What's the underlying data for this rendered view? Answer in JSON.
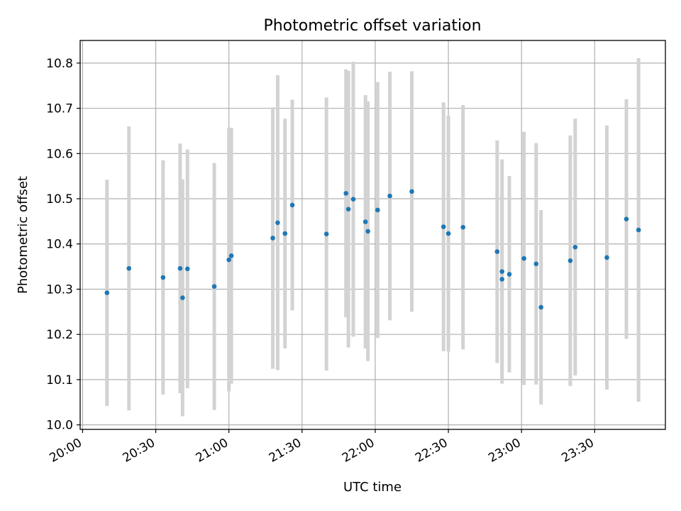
{
  "chart_data": {
    "type": "scatter",
    "title": "Photometric offset variation",
    "xlabel": "UTC time",
    "ylabel": "Photometric offset",
    "x_unit": "UTC time (HH:MM)",
    "xlim": [
      "19:59",
      "23:59"
    ],
    "ylim": [
      9.99,
      10.85
    ],
    "grid": true,
    "x_ticks": [
      "20:00",
      "20:30",
      "21:00",
      "21:30",
      "22:00",
      "22:30",
      "23:00",
      "23:30"
    ],
    "y_ticks": [
      "10.0",
      "10.1",
      "10.2",
      "10.3",
      "10.4",
      "10.5",
      "10.6",
      "10.7",
      "10.8"
    ],
    "colors": {
      "points": "#1f77b4",
      "errorbars": "#d3d3d3",
      "grid": "#b0b0b0"
    },
    "points": [
      {
        "x": "20:10",
        "y": 10.292,
        "err": 0.25
      },
      {
        "x": "20:19",
        "y": 10.346,
        "err": 0.314
      },
      {
        "x": "20:33",
        "y": 10.326,
        "err": 0.259
      },
      {
        "x": "20:40",
        "y": 10.346,
        "err": 0.276
      },
      {
        "x": "20:41",
        "y": 10.281,
        "err": 0.262
      },
      {
        "x": "20:43",
        "y": 10.345,
        "err": 0.264
      },
      {
        "x": "20:54",
        "y": 10.306,
        "err": 0.273
      },
      {
        "x": "21:00",
        "y": 10.365,
        "err": 0.291
      },
      {
        "x": "21:01",
        "y": 10.374,
        "err": 0.283
      },
      {
        "x": "21:18",
        "y": 10.413,
        "err": 0.289
      },
      {
        "x": "21:20",
        "y": 10.447,
        "err": 0.326
      },
      {
        "x": "21:23",
        "y": 10.423,
        "err": 0.254
      },
      {
        "x": "21:26",
        "y": 10.486,
        "err": 0.233
      },
      {
        "x": "21:40",
        "y": 10.422,
        "err": 0.302
      },
      {
        "x": "21:48",
        "y": 10.512,
        "err": 0.274
      },
      {
        "x": "21:49",
        "y": 10.477,
        "err": 0.306
      },
      {
        "x": "21:51",
        "y": 10.499,
        "err": 0.304
      },
      {
        "x": "21:56",
        "y": 10.449,
        "err": 0.28
      },
      {
        "x": "21:57",
        "y": 10.428,
        "err": 0.287
      },
      {
        "x": "22:01",
        "y": 10.475,
        "err": 0.283
      },
      {
        "x": "22:06",
        "y": 10.506,
        "err": 0.275
      },
      {
        "x": "22:15",
        "y": 10.516,
        "err": 0.266
      },
      {
        "x": "22:28",
        "y": 10.438,
        "err": 0.275
      },
      {
        "x": "22:30",
        "y": 10.423,
        "err": 0.261
      },
      {
        "x": "22:36",
        "y": 10.437,
        "err": 0.27
      },
      {
        "x": "22:50",
        "y": 10.383,
        "err": 0.246
      },
      {
        "x": "22:52",
        "y": 10.339,
        "err": 0.248
      },
      {
        "x": "22:52",
        "y": 10.322,
        "err": 0.2
      },
      {
        "x": "22:55",
        "y": 10.333,
        "err": 0.217
      },
      {
        "x": "23:01",
        "y": 10.368,
        "err": 0.28
      },
      {
        "x": "23:06",
        "y": 10.356,
        "err": 0.267
      },
      {
        "x": "23:08",
        "y": 10.26,
        "err": 0.215
      },
      {
        "x": "23:20",
        "y": 10.363,
        "err": 0.277
      },
      {
        "x": "23:22",
        "y": 10.393,
        "err": 0.284
      },
      {
        "x": "23:35",
        "y": 10.37,
        "err": 0.292
      },
      {
        "x": "23:43",
        "y": 10.455,
        "err": 0.265
      },
      {
        "x": "23:48",
        "y": 10.431,
        "err": 0.38
      }
    ]
  }
}
